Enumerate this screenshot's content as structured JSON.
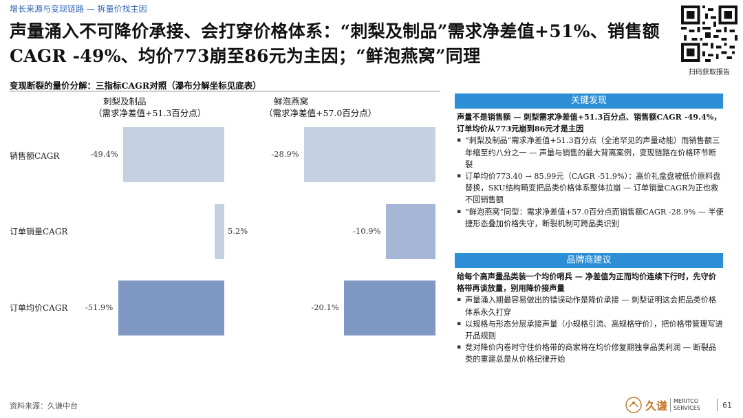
{
  "header": {
    "breadcrumb": "增长来源与变现链路 — 拆量价找主因",
    "title": "声量涌入不可降价承接、会打穿价格体系：“刺梨及制品”需求净差值+51%、销售额CAGR -49%、均价773崩至86元为主因；“鲜泡燕窝”同理"
  },
  "qr": {
    "caption": "扫码获取报告"
  },
  "left": {
    "heading": "变现断裂的量价分解：三指标CAGR对照（瀑布分解坐标见底表）"
  },
  "chart_data": {
    "type": "bar",
    "orientation": "horizontal",
    "categories": [
      "销售额CAGR",
      "订单销量CAGR",
      "订单均价CAGR"
    ],
    "series": [
      {
        "name": "刺梨及制品",
        "subtitle": "（需求净差值+51.3百分点）",
        "values": [
          -49.4,
          5.2,
          -51.9
        ],
        "labels": [
          "-49.4%",
          "5.2%",
          "-51.9%"
        ],
        "colors": [
          "#c5d0e3",
          "#c5d0e3",
          "#7f98c3"
        ]
      },
      {
        "name": "鲜泡燕窝",
        "subtitle": "（需求净差值+57.0百分点）",
        "values": [
          -28.9,
          -10.9,
          -20.1
        ],
        "labels": [
          "-28.9%",
          "-10.9%",
          "-20.1%"
        ],
        "colors": [
          "#c5d0e3",
          "#a5b6d6",
          "#7f98c3"
        ]
      }
    ],
    "unit": "%",
    "grid": false,
    "legend": "none"
  },
  "panel": {
    "findings_header": "关键发现",
    "findings_lead": "声量不是销售额 — 刺梨需求净差值+51.3百分点、销售额CAGR -49.4%，订单均价从773元崩到86元才是主因",
    "findings_bullets": [
      "“刺梨及制品”需求净差值+51.3百分点（全池罕见的声量动能）而销售额三年缩至约八分之一 — 声量与销售的最大背离案例，变现链路在价格环节断裂",
      "订单均价773.40 → 85.99元（CAGR -51.9%）：高价礼盒盘被低价原料盘替换，SKU结构畸变把品类价格体系整体拉崩 — 订单销量CAGR为正也救不回销售额",
      "“鲜泡燕窝”同型：需求净差值+57.0百分点而销售额CAGR -28.9% — 半便捷形态叠加价格失守，断裂机制可跨品类识别"
    ],
    "advice_header": "品牌商建议",
    "advice_lead": "给每个高声量品类装一个均价哨兵 — 净差值为正而均价连续下行时，先守价格带再谈放量，别用降价接声量",
    "advice_bullets": [
      "声量涌入期最容易做出的错误动作是降价承接 — 刺梨证明这会把品类价格体系永久打穿",
      "以规格与形态分层承接声量（小规格引流、高规格守价），把价格带管理写进开品规则",
      "竞对降价内卷时守住价格带的商家将在均价修复期独享品类利润 — 断裂品类的重建总是从价格纪律开始"
    ]
  },
  "footer": {
    "source": "资料来源：久谦中台",
    "logo_cn": "久谦",
    "logo_en_1": "MERITCO",
    "logo_en_2": "SERVICES",
    "page_number": "61"
  },
  "colors": {
    "accent": "#2c8fd6",
    "breadcrumb": "#2f62b3",
    "bar_light": "#c5d0e3",
    "bar_mid": "#a5b6d6",
    "bar_dark": "#7f98c3"
  }
}
